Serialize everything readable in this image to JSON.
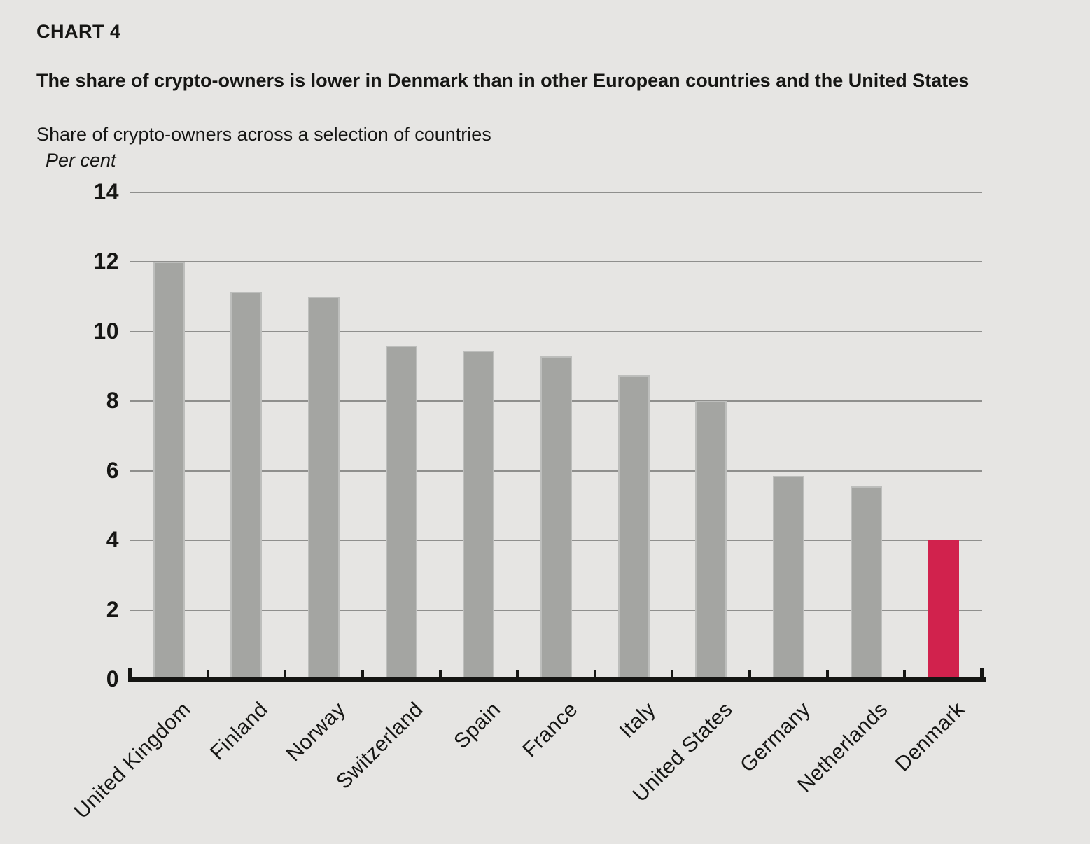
{
  "header": {
    "kicker": "CHART 4",
    "title": "The share of crypto-owners is lower in Denmark than in other European countries and the United States",
    "subtitle": "Share of crypto-owners across a selection of countries",
    "unit_label": "Per cent"
  },
  "chart_data": {
    "type": "bar",
    "title": "Share of crypto-owners across a selection of countries",
    "xlabel": "",
    "ylabel": "Per cent",
    "categories": [
      "United Kingdom",
      "Finland",
      "Norway",
      "Switzerland",
      "Spain",
      "France",
      "Italy",
      "United States",
      "Germany",
      "Netherlands",
      "Denmark"
    ],
    "values": [
      12.0,
      11.15,
      11.0,
      9.6,
      9.45,
      9.3,
      8.75,
      8.0,
      5.85,
      5.55,
      4.0
    ],
    "ylim": [
      0,
      14
    ],
    "yticks": [
      0,
      2,
      4,
      6,
      8,
      10,
      12,
      14
    ],
    "grid": "horizontal",
    "legend": "none",
    "highlight_category": "Denmark",
    "colors": {
      "bar": "#a4a5a2",
      "highlight": "#d1224d",
      "background": "#e6e5e3",
      "gridline": "#8f8f8d",
      "axis": "#151513",
      "text": "#161614"
    }
  }
}
